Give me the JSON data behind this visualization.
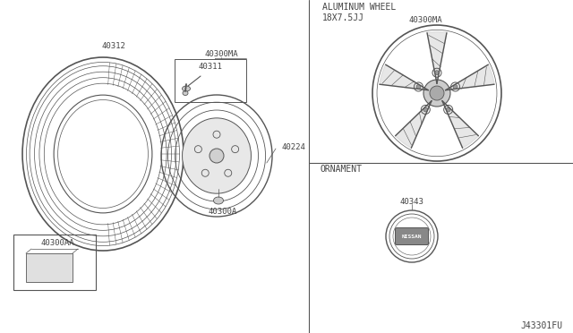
{
  "bg_color": "#ffffff",
  "line_color": "#555555",
  "text_color": "#444444",
  "title_text": "ALUMINUM WHEEL\n18X7.5JJ",
  "ornament_text": "ORNAMENT",
  "diagram_id": "J43301FU",
  "parts": {
    "tire_label": "40312",
    "wheel_assembly_label": "40300MA",
    "valve_label": "40311",
    "hub_label": "40224",
    "cap_label": "40300A",
    "booklet_label": "40300AA",
    "alloy_label": "40300MA",
    "ornament_label": "40343"
  }
}
